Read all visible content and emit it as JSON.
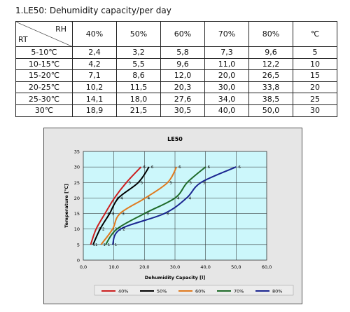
{
  "caption": "1.LE50:  Dehumidity capacity/per day",
  "table": {
    "corner_top": "RH",
    "corner_bottom": "RT",
    "headers": [
      "40%",
      "50%",
      "60%",
      "70%",
      "80%",
      "℃"
    ],
    "rows": [
      {
        "rt": "5-10℃",
        "cells": [
          "2,4",
          "3,2",
          "5,8",
          "7,3",
          "9,6",
          "5"
        ]
      },
      {
        "rt": "10-15℃",
        "cells": [
          "4,2",
          "5,5",
          "9,6",
          "11,0",
          "12,2",
          "10"
        ]
      },
      {
        "rt": "15-20℃",
        "cells": [
          "7,1",
          "8,6",
          "12,0",
          "20,0",
          "26,5",
          "15"
        ]
      },
      {
        "rt": "20-25℃",
        "cells": [
          "10,2",
          "11,5",
          "20,3",
          "30,0",
          "33,8",
          "20"
        ]
      },
      {
        "rt": "25-30℃",
        "cells": [
          "14,1",
          "18,0",
          "27,6",
          "34,0",
          "38,5",
          "25"
        ]
      },
      {
        "rt": "30℃",
        "cells": [
          "18,9",
          "21,5",
          "30,5",
          "40,0",
          "50,0",
          "30"
        ]
      }
    ]
  },
  "chart_data": {
    "type": "line",
    "title": "LE50",
    "xlabel": "Dehumidity Capacity [l]",
    "ylabel": "Temperature [℃]",
    "xlim": [
      0,
      60
    ],
    "ylim": [
      0,
      35
    ],
    "x_ticks": [
      "0,0",
      "10,0",
      "20,0",
      "30,0",
      "40,0",
      "50,0",
      "60,0"
    ],
    "y_ticks": [
      "0",
      "5",
      "10",
      "15",
      "20",
      "25",
      "30",
      "35"
    ],
    "grid": true,
    "legend_position": "bottom",
    "point_labels": [
      "1",
      "2",
      "3",
      "4",
      "5",
      "6"
    ],
    "plot_background": "#ccf7fb",
    "series": [
      {
        "name": "40%",
        "color": "#cc2020",
        "x": [
          2.4,
          4.2,
          7.1,
          10.2,
          14.1,
          18.9
        ],
        "y": [
          5,
          10,
          15,
          20,
          25,
          30
        ]
      },
      {
        "name": "50%",
        "color": "#000000",
        "x": [
          3.2,
          5.5,
          8.6,
          11.5,
          18.0,
          21.5
        ],
        "y": [
          5,
          10,
          15,
          20,
          25,
          30
        ]
      },
      {
        "name": "60%",
        "color": "#e07a1f",
        "x": [
          5.8,
          9.6,
          12.0,
          20.3,
          27.6,
          30.5
        ],
        "y": [
          5,
          10,
          15,
          20,
          25,
          30
        ]
      },
      {
        "name": "70%",
        "color": "#1f6b2a",
        "x": [
          7.3,
          11.0,
          20.0,
          30.0,
          34.0,
          40.0
        ],
        "y": [
          5,
          10,
          15,
          20,
          25,
          30
        ]
      },
      {
        "name": "80%",
        "color": "#1a2590",
        "x": [
          9.6,
          12.2,
          26.5,
          33.8,
          38.5,
          50.0
        ],
        "y": [
          5,
          10,
          15,
          20,
          25,
          30
        ]
      }
    ]
  }
}
